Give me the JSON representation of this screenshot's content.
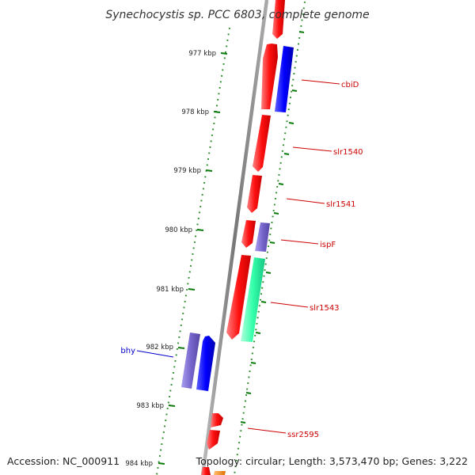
{
  "title": "Synechocystis sp. PCC 6803, complete genome",
  "footer": {
    "accession": "Accession: NC_000911",
    "summary": "Topology: circular; Length: 3,573,470 bp; Genes: 3,222"
  },
  "colors": {
    "backbone": "#8c8c8c",
    "tick": "#0a7a0a",
    "label_red": "#cc0000",
    "label_blue": "#0000cc",
    "gene_red": "#ff0000",
    "gene_blue": "#0000ff",
    "gene_purple": "#7766cc",
    "gene_green": "#33ffaa",
    "gene_orange": "#ff8800"
  },
  "ticks": [
    "977 kbp",
    "978 kbp",
    "979 kbp",
    "980 kbp",
    "981 kbp",
    "982 kbp",
    "983 kbp",
    "984 kbp"
  ],
  "gene_labels": [
    "cbiD",
    "slr1540",
    "slr1541",
    "ispF",
    "slr1543",
    "bhy",
    "ssr2595"
  ]
}
